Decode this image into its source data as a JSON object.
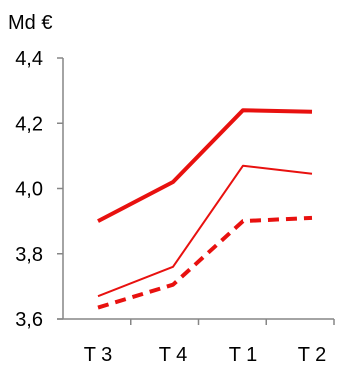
{
  "chart_data": {
    "type": "line",
    "title": "",
    "xlabel": "",
    "ylabel": "Md €",
    "categories": [
      "T 3",
      "T 4",
      "T 1",
      "T 2"
    ],
    "ylim": [
      3.6,
      4.4
    ],
    "yticks": [
      3.6,
      3.8,
      4.0,
      4.2,
      4.4
    ],
    "ytick_labels": [
      "3,6",
      "3,8",
      "4,0",
      "4,2",
      "4,4"
    ],
    "grid": false,
    "legend": "none",
    "series": [
      {
        "values": [
          3.9,
          4.02,
          4.24,
          4.235
        ],
        "color": "#e8110f",
        "style": "thick-solid"
      },
      {
        "values": [
          3.67,
          3.76,
          4.07,
          4.045
        ],
        "color": "#e8110f",
        "style": "thin-solid"
      },
      {
        "values": [
          3.635,
          3.705,
          3.9,
          3.91
        ],
        "color": "#e8110f",
        "style": "thick-dashed"
      }
    ]
  }
}
